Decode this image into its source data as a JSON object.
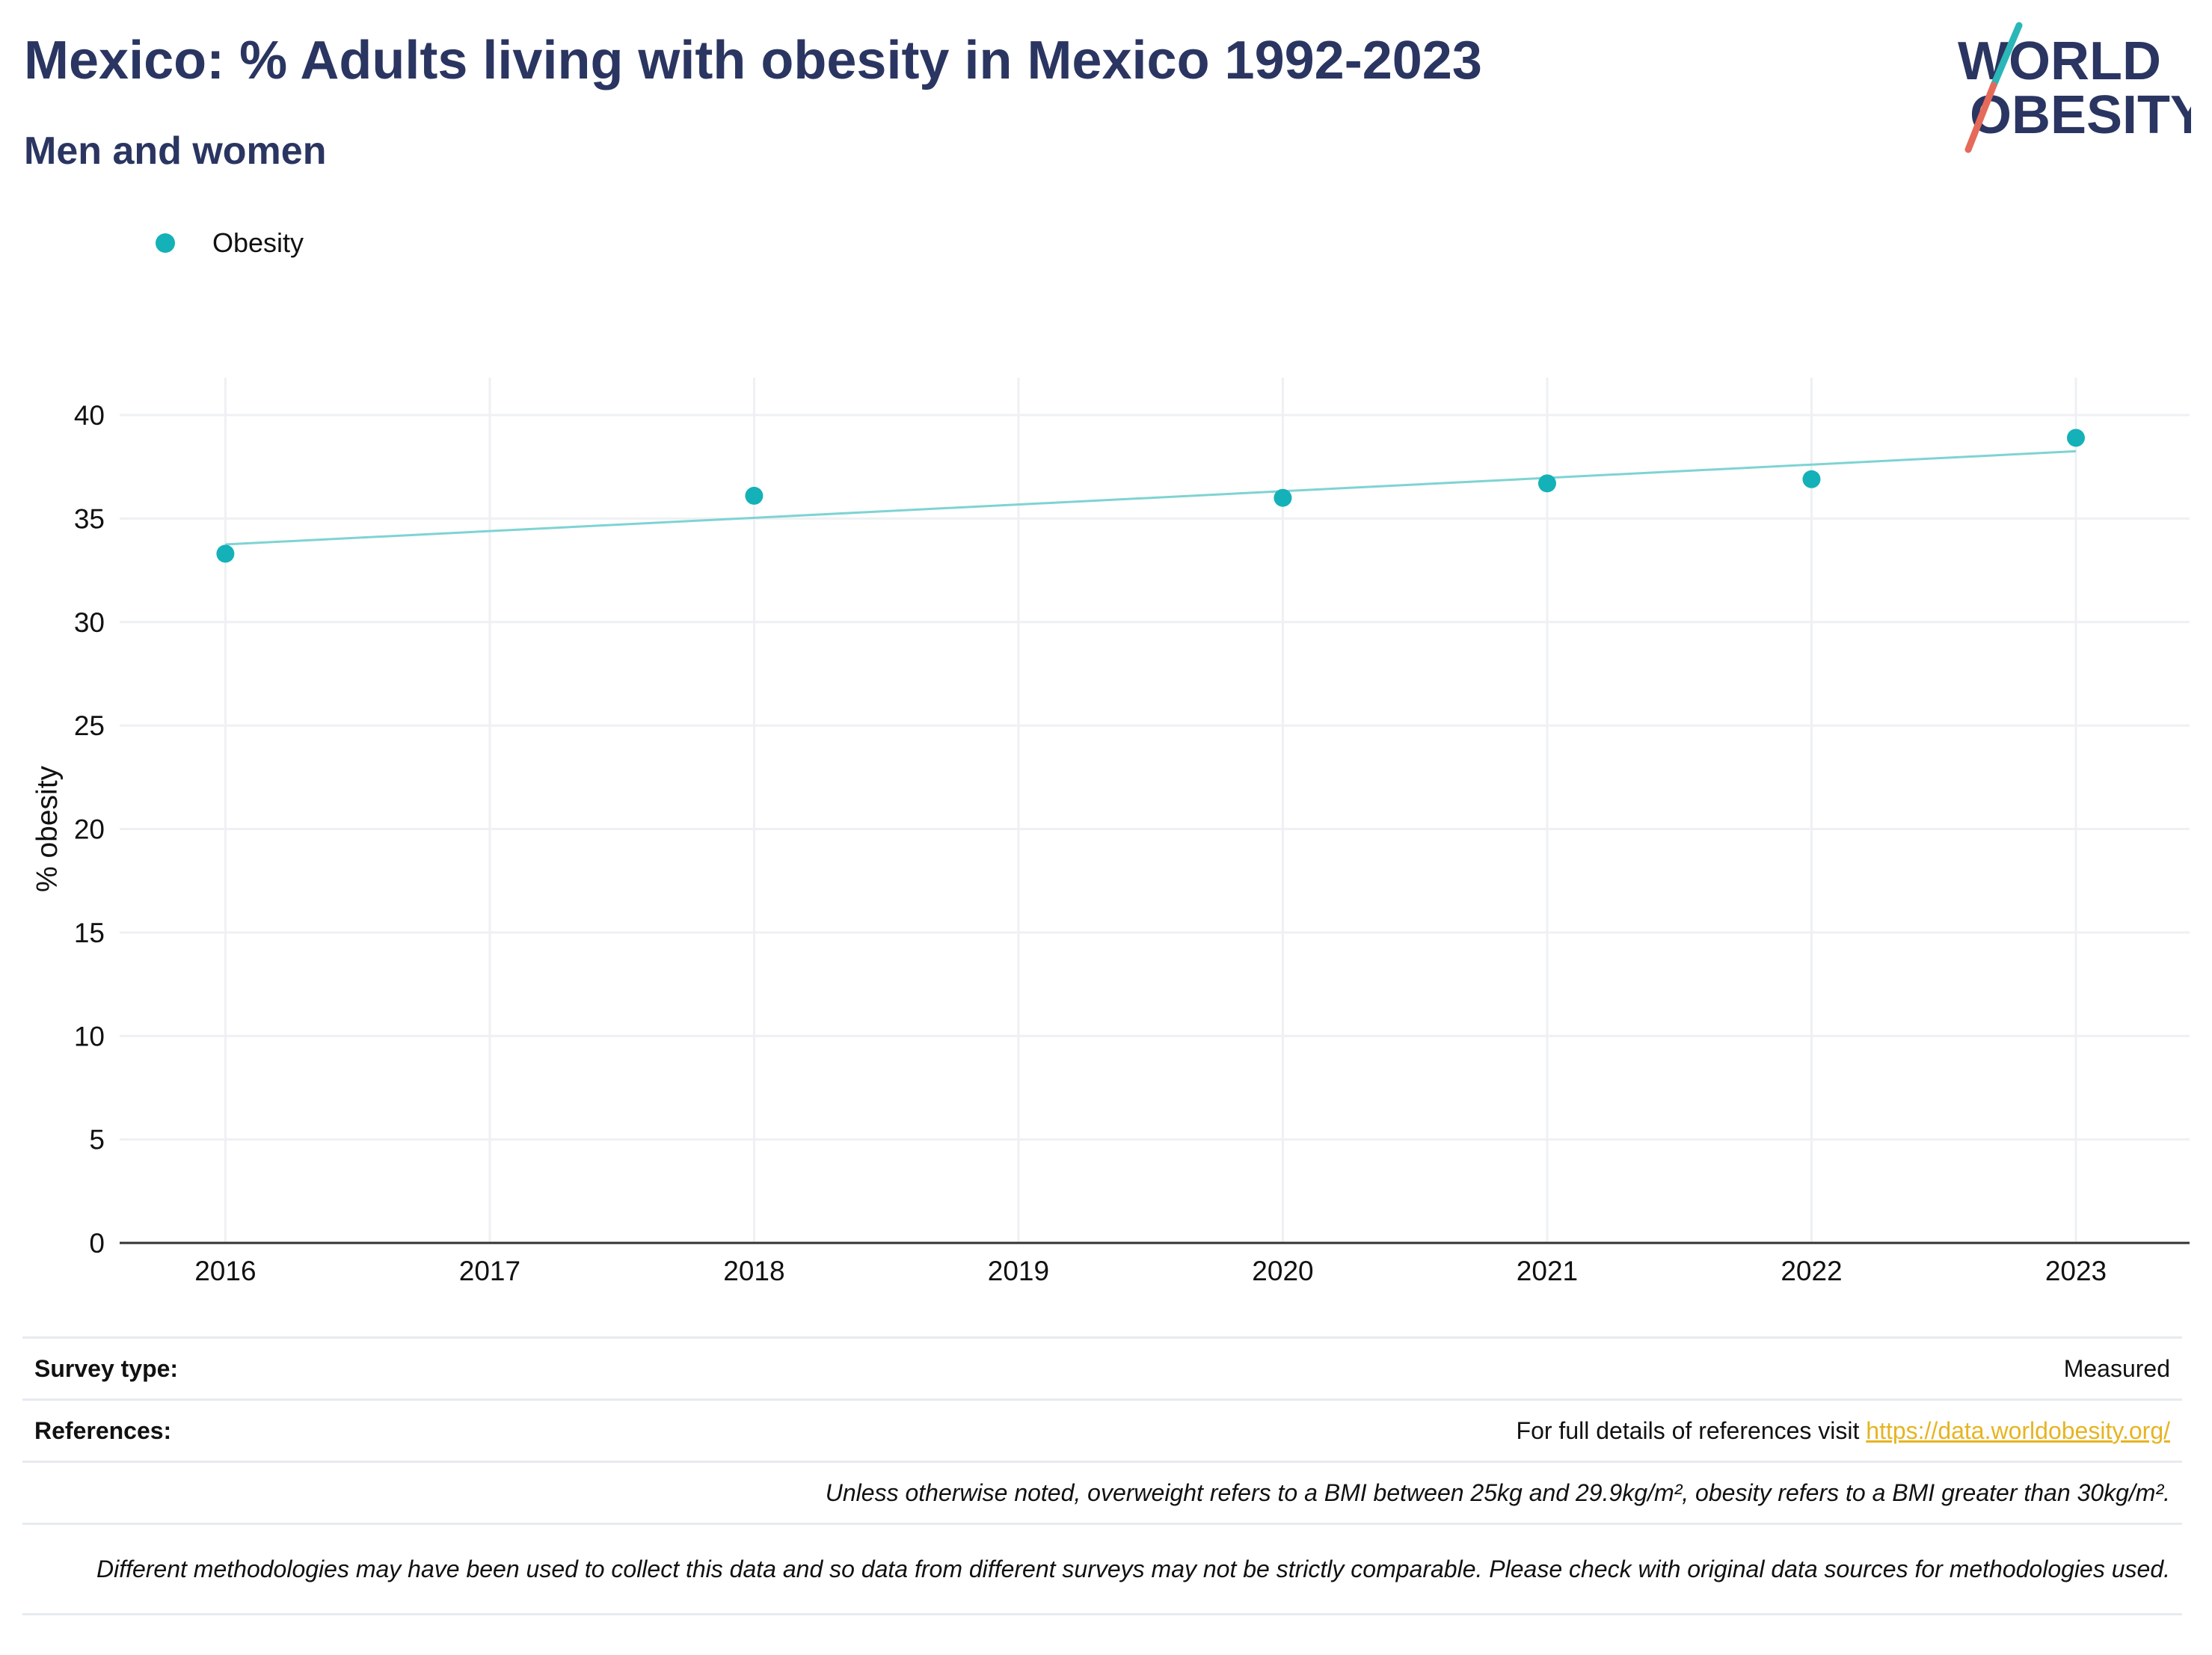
{
  "header": {
    "title": "Mexico: % Adults living with obesity in Mexico 1992-2023",
    "subtitle": "Men and women"
  },
  "logo": {
    "line1": "WORLD",
    "line2": "OBESITY",
    "text_color": "#2a3561",
    "slash_top_color": "#2bb6b8",
    "slash_bottom_color": "#e56a5a"
  },
  "colors": {
    "points": "#14b1b8",
    "trendline": "#7fd3d3",
    "grid": "#eef0f3",
    "axis": "#333333",
    "link": "#e6b422"
  },
  "chart_data": {
    "type": "scatter",
    "ylabel": "% obesity",
    "xlabel": "",
    "x_ticks": [
      2016,
      2017,
      2018,
      2019,
      2020,
      2021,
      2022,
      2023
    ],
    "y_ticks": [
      0,
      5,
      10,
      15,
      20,
      25,
      30,
      35,
      40
    ],
    "xlim": [
      2015.6,
      2023.43
    ],
    "ylim": [
      0,
      40
    ],
    "grid": true,
    "legend_position": "top-left",
    "series": [
      {
        "name": "Obesity",
        "x": [
          2016,
          2018,
          2020,
          2021,
          2022,
          2023
        ],
        "y": [
          33.3,
          36.1,
          36.0,
          36.7,
          36.9,
          38.9
        ]
      }
    ],
    "trendline": {
      "x": [
        2016,
        2023
      ],
      "y": [
        33.75,
        38.25
      ]
    }
  },
  "footer": {
    "survey_type_label": "Survey type:",
    "survey_type_value": "Measured",
    "references_label": "References:",
    "references_text": "For full details of references visit ",
    "references_link": "https://data.worldobesity.org/",
    "note_bmi": "Unless otherwise noted, overweight refers to a BMI between 25kg and 29.9kg/m², obesity refers to a BMI greater than 30kg/m².",
    "note_methods": "Different methodologies may have been used to collect this data and so data from different surveys may not be strictly comparable. Please check with original data sources for methodologies used."
  }
}
